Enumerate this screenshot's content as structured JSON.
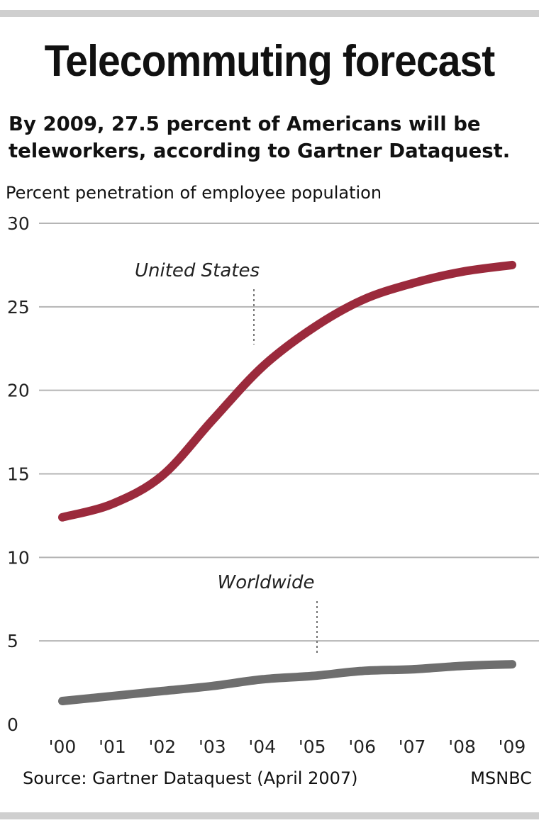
{
  "title": "Telecommuting forecast",
  "subtitle_line1": "By 2009, 27.5 percent of Americans will be",
  "subtitle_line2": "teleworkers, according to Gartner Dataquest.",
  "source": "Source:  Gartner Dataquest (April 2007)",
  "credit": "MSNBC",
  "chart_data": {
    "type": "line",
    "ylabel": "Percent penetration of employee population",
    "xlabel": "",
    "ylim": [
      0,
      30
    ],
    "yticks": [
      0,
      5,
      10,
      15,
      20,
      25,
      30
    ],
    "grid": true,
    "x": [
      "'00",
      "'01",
      "'02",
      "'03",
      "'04",
      "'05",
      "'06",
      "'07",
      "'08",
      "'09"
    ],
    "series": [
      {
        "name": "United States",
        "color": "#9b2a3c",
        "values": [
          12.4,
          13.2,
          14.9,
          18.2,
          21.4,
          23.7,
          25.4,
          26.4,
          27.1,
          27.5
        ]
      },
      {
        "name": "Worldwide",
        "color": "#6e6e6e",
        "values": [
          1.4,
          1.7,
          2.0,
          2.3,
          2.7,
          2.9,
          3.2,
          3.3,
          3.5,
          3.6
        ]
      }
    ]
  }
}
